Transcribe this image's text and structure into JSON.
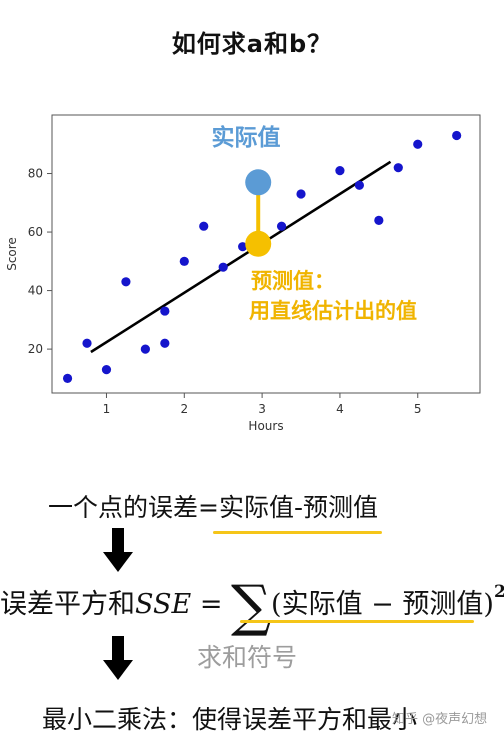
{
  "title": "如何求a和b？",
  "chart_data": {
    "type": "scatter",
    "xlabel": "Hours",
    "ylabel": "Score",
    "xlim": [
      0.3,
      5.8
    ],
    "ylim": [
      5,
      100
    ],
    "xticks": [
      1,
      2,
      3,
      4,
      5
    ],
    "yticks": [
      20,
      40,
      60,
      80
    ],
    "grid": false,
    "point_color": "#1515cc",
    "points": [
      [
        0.5,
        10
      ],
      [
        0.75,
        22
      ],
      [
        1.0,
        13
      ],
      [
        1.25,
        43
      ],
      [
        1.5,
        20
      ],
      [
        1.75,
        22
      ],
      [
        1.75,
        33
      ],
      [
        2.0,
        50
      ],
      [
        2.25,
        62
      ],
      [
        2.5,
        48
      ],
      [
        2.75,
        55
      ],
      [
        3.25,
        62
      ],
      [
        3.5,
        73
      ],
      [
        4.0,
        81
      ],
      [
        4.25,
        76
      ],
      [
        4.5,
        64
      ],
      [
        4.75,
        82
      ],
      [
        5.0,
        90
      ],
      [
        5.5,
        93
      ]
    ],
    "fit_line": {
      "x": [
        0.8,
        4.65
      ],
      "y": [
        19,
        84
      ],
      "color": "#000000"
    },
    "highlight": {
      "x": 2.95,
      "actual_y": 77,
      "predicted_y": 56,
      "actual_color": "#5b9bd5",
      "predicted_color": "#f5c000",
      "connector_color": "#f5c000"
    },
    "annotations": {
      "actual": "实际值",
      "predicted_line1": "预测值：",
      "predicted_line2": "用直线估计出的值"
    }
  },
  "error_def": {
    "prefix": "一个点的误差=",
    "underlined": "实际值-预测值"
  },
  "sse": {
    "label": "误差平方和",
    "symbol": "SSE",
    "equals": "=",
    "sigma": "∑",
    "open_paren": "(",
    "actual": "实际值",
    "minus": "−",
    "predicted": "预测值",
    "close_paren": ")",
    "exponent": "2"
  },
  "sum_symbol_label": "求和符号",
  "least_squares": "最小二乘法：使得误差平方和最小",
  "watermark": "知乎 @夜声幻想"
}
